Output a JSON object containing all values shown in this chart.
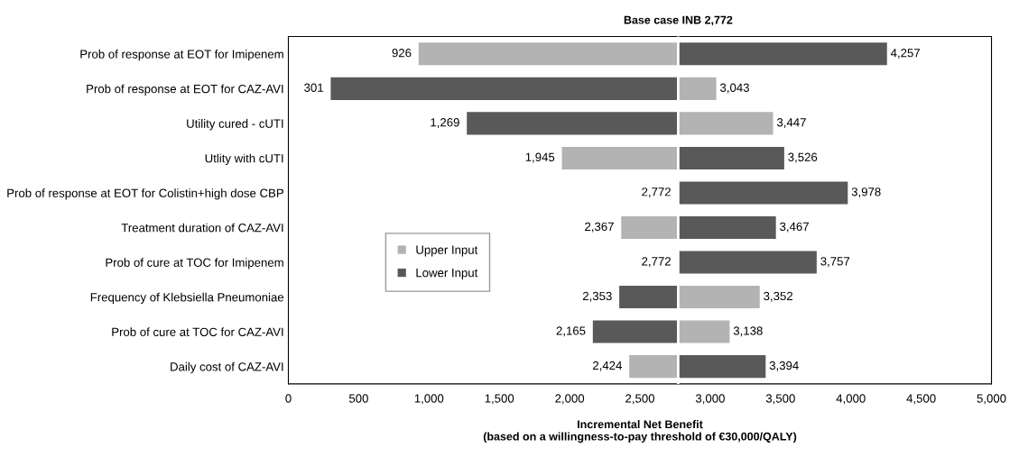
{
  "chart_data": {
    "type": "bar",
    "orientation": "horizontal",
    "xlabel": "Incremental Net Benefit\n(based on a willingness-to-pay threshold of €30,000/QALY)",
    "categories": [
      "Prob of response at EOT for Imipenem",
      "Prob of response at EOT for CAZ-AVI",
      "Utility cured - cUTI",
      "Utlity with cUTI",
      "Prob of response at EOT for Colistin+high dose CBP",
      "Treatment duration of CAZ-AVI",
      "Prob of cure at TOC for Imipenem",
      "Frequency of Klebsiella Pneumoniae",
      "Prob of cure at TOC for CAZ-AVI",
      "Daily cost of CAZ-AVI"
    ],
    "series": [
      {
        "name": "Upper Input",
        "color": "#b3b3b3",
        "base": [
          2772,
          2772,
          2772,
          2772,
          null,
          2772,
          null,
          2772,
          2772,
          2772
        ],
        "values": [
          -1846,
          271,
          675,
          -827,
          null,
          -405,
          null,
          580,
          366,
          -348
        ]
      },
      {
        "name": "Lower Input",
        "color": "#595959",
        "base": [
          2772,
          2772,
          2772,
          2772,
          2772,
          2772,
          2772,
          2772,
          2772,
          2772
        ],
        "values": [
          1485,
          -2471,
          -1503,
          754,
          1206,
          695,
          985,
          -419,
          -607,
          622
        ]
      }
    ],
    "annotations": [
      {
        "text": "926",
        "x": 926,
        "y": "Prob of response at EOT for Imipenem"
      },
      {
        "text": "4,257",
        "x": 4257,
        "y": "Prob of response at EOT for Imipenem"
      },
      {
        "text": "301",
        "x": 301,
        "y": "Prob of response at EOT for CAZ-AVI"
      },
      {
        "text": "3,043",
        "x": 3043,
        "y": "Prob of response at EOT for CAZ-AVI"
      },
      {
        "text": "1,269",
        "x": 1269,
        "y": "Utility cured - cUTI"
      },
      {
        "text": "3,447",
        "x": 3447,
        "y": "Utility cured - cUTI"
      },
      {
        "text": "1,945",
        "x": 1945,
        "y": "Utlity with cUTI"
      },
      {
        "text": "3,526",
        "x": 3526,
        "y": "Utlity with cUTI"
      },
      {
        "text": "2,772",
        "x": 2772,
        "y": "Prob of response at EOT for Colistin+high dose CBP"
      },
      {
        "text": "3,978",
        "x": 3978,
        "y": "Prob of response at EOT for Colistin+high dose CBP"
      },
      {
        "text": "2,367",
        "x": 2367,
        "y": "Treatment duration of CAZ-AVI"
      },
      {
        "text": "3,467",
        "x": 3467,
        "y": "Treatment duration of CAZ-AVI"
      },
      {
        "text": "2,772",
        "x": 2772,
        "y": "Prob of cure at TOC for Imipenem"
      },
      {
        "text": "3,757",
        "x": 3757,
        "y": "Prob of cure at TOC for Imipenem"
      },
      {
        "text": "2,353",
        "x": 2353,
        "y": "Frequency of Klebsiella Pneumoniae"
      },
      {
        "text": "3,352",
        "x": 3352,
        "y": "Frequency of Klebsiella Pneumoniae"
      },
      {
        "text": "2,165",
        "x": 2165,
        "y": "Prob of cure at TOC for CAZ-AVI"
      },
      {
        "text": "3,138",
        "x": 3138,
        "y": "Prob of cure at TOC for CAZ-AVI"
      },
      {
        "text": "2,424",
        "x": 2424,
        "y": "Daily cost of CAZ-AVI"
      },
      {
        "text": "3,394",
        "x": 3394,
        "y": "Daily cost of CAZ-AVI"
      }
    ],
    "xlim": [
      0,
      5000
    ],
    "xticks": [
      0,
      500,
      {
        "value": 1000,
        "label": "1,000"
      },
      {
        "value": 1500,
        "label": "1,500"
      },
      {
        "value": 2000,
        "label": "2,000"
      },
      {
        "value": 2500,
        "label": "2,500"
      },
      {
        "value": 3000,
        "label": "3,000"
      },
      {
        "value": 3500,
        "label": "3,500"
      },
      {
        "value": 4000,
        "label": "4,000"
      },
      {
        "value": 4500,
        "label": "4,500"
      },
      {
        "value": 5000,
        "label": "5,000"
      }
    ],
    "ref_lines": [
      {
        "axis": "x",
        "value": 2772,
        "label": "Base case INB 2,772",
        "color": "#ffffff"
      }
    ],
    "grid": false,
    "legend": "center left"
  }
}
